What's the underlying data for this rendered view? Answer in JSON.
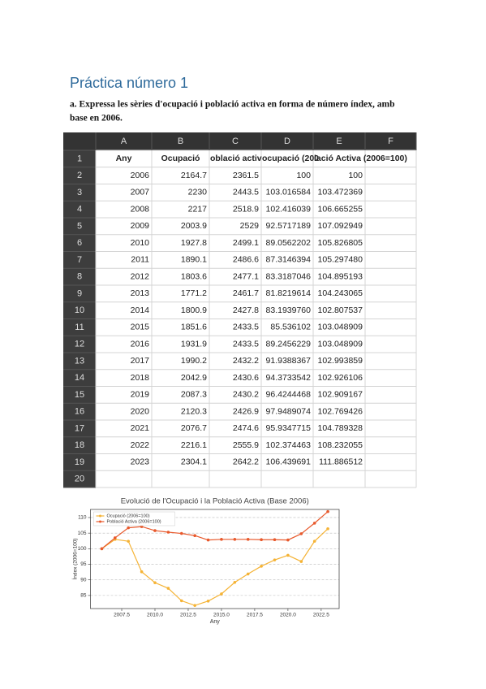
{
  "heading": "Práctica número 1",
  "instruction": [
    "a. Expressa les sèries d'ocupació i població activa en forma de número índex, amb",
    "base en 2006."
  ],
  "sheet": {
    "columns": [
      "A",
      "B",
      "C",
      "D",
      "E",
      "F"
    ],
    "row_numbers": [
      1,
      2,
      3,
      4,
      5,
      6,
      7,
      8,
      9,
      10,
      11,
      12,
      13,
      14,
      15,
      16,
      17,
      18,
      19,
      20
    ],
    "header": [
      "Any",
      "Ocupació",
      "oblació activ",
      "ocupació (200",
      "lació Activa (2006=100)"
    ],
    "rows": [
      [
        "2006",
        "2164.7",
        "2361.5",
        "100",
        "100"
      ],
      [
        "2007",
        "2230",
        "2443.5",
        "103.016584",
        "103.472369"
      ],
      [
        "2008",
        "2217",
        "2518.9",
        "102.416039",
        "106.665255"
      ],
      [
        "2009",
        "2003.9",
        "2529",
        "92.5717189",
        "107.092949"
      ],
      [
        "2010",
        "1927.8",
        "2499.1",
        "89.0562202",
        "105.826805"
      ],
      [
        "2011",
        "1890.1",
        "2486.6",
        "87.3146394",
        "105.297480"
      ],
      [
        "2012",
        "1803.6",
        "2477.1",
        "83.3187046",
        "104.895193"
      ],
      [
        "2013",
        "1771.2",
        "2461.7",
        "81.8219614",
        "104.243065"
      ],
      [
        "2014",
        "1800.9",
        "2427.8",
        "83.1939760",
        "102.807537"
      ],
      [
        "2015",
        "1851.6",
        "2433.5",
        "85.536102",
        "103.048909"
      ],
      [
        "2016",
        "1931.9",
        "2433.5",
        "89.2456229",
        "103.048909"
      ],
      [
        "2017",
        "1990.2",
        "2432.2",
        "91.9388367",
        "102.993859"
      ],
      [
        "2018",
        "2042.9",
        "2430.6",
        "94.3733542",
        "102.926106"
      ],
      [
        "2019",
        "2087.3",
        "2430.2",
        "96.4244468",
        "102.909167"
      ],
      [
        "2020",
        "2120.3",
        "2426.9",
        "97.9489074",
        "102.769426"
      ],
      [
        "2021",
        "2076.7",
        "2474.6",
        "95.9347715",
        "104.789328"
      ],
      [
        "2022",
        "2216.1",
        "2555.9",
        "102.374463",
        "108.232055"
      ],
      [
        "2023",
        "2304.1",
        "2642.2",
        "106.439691",
        "111.886512"
      ]
    ]
  },
  "chart_data": {
    "type": "line",
    "title": "Evolució de l'Ocupació i la Població Activa (Base 2006)",
    "x_label": "Any",
    "y_label": "Índex (2006=100)",
    "x": [
      2006,
      2007,
      2008,
      2009,
      2010,
      2011,
      2012,
      2013,
      2014,
      2015,
      2016,
      2017,
      2018,
      2019,
      2020,
      2021,
      2022,
      2023
    ],
    "series": [
      {
        "name": "Ocupació (2006=100)",
        "color": "#f5b335",
        "values": [
          100,
          103.0,
          102.4,
          92.6,
          89.1,
          87.3,
          83.3,
          81.8,
          83.2,
          85.5,
          89.2,
          91.9,
          94.4,
          96.4,
          97.9,
          95.9,
          102.4,
          106.4
        ]
      },
      {
        "name": "Població Activa (2006=100)",
        "color": "#e8592c",
        "values": [
          100,
          103.5,
          106.7,
          107.1,
          105.8,
          105.3,
          104.9,
          104.2,
          102.8,
          103.0,
          103.0,
          103.0,
          102.9,
          102.9,
          102.8,
          104.8,
          108.2,
          111.9
        ]
      }
    ],
    "xlim": [
      2005.15,
      2023.85
    ],
    "xticks": [
      {
        "value": 2007.5,
        "label": "2007.5"
      },
      {
        "value": 2010,
        "label": "2010.0"
      },
      {
        "value": 2012.5,
        "label": "2012.5"
      },
      {
        "value": 2015,
        "label": "2015.0"
      },
      {
        "value": 2017.5,
        "label": "2017.5"
      },
      {
        "value": 2020,
        "label": "2020.0"
      },
      {
        "value": 2022.5,
        "label": "2022.5"
      }
    ],
    "ylim": [
      80.8,
      112.6
    ],
    "yticks": [
      85,
      90,
      95,
      100,
      105,
      110
    ],
    "grid": true,
    "legend": "upper-left"
  }
}
